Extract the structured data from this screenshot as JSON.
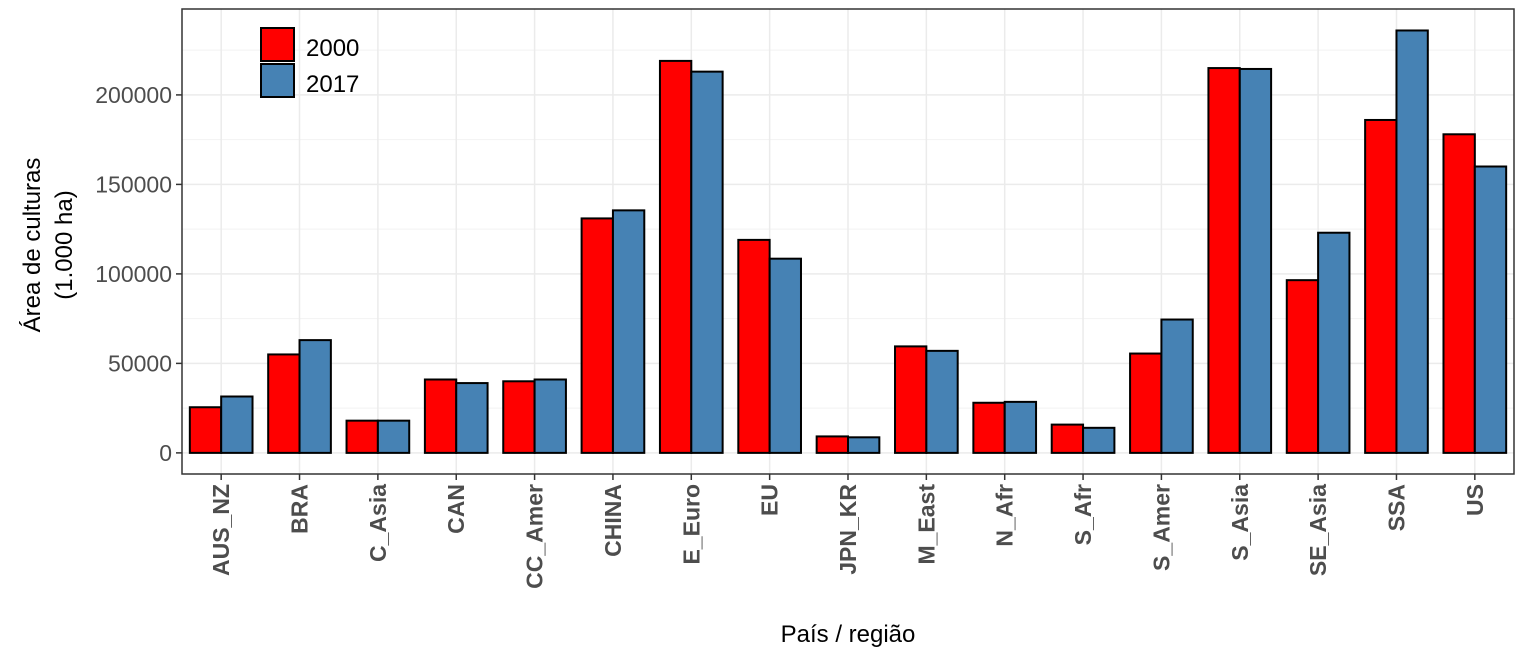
{
  "chart_data": {
    "type": "bar",
    "title": "",
    "xlabel": "País / região",
    "ylabel_lines": [
      "Área de culturas",
      "(1.000 ha)"
    ],
    "categories": [
      "AUS_NZ",
      "BRA",
      "C_Asia",
      "CAN",
      "CC_Amer",
      "CHINA",
      "E_Euro",
      "EU",
      "JPN_KR",
      "M_East",
      "N_Afr",
      "S_Afr",
      "S_Amer",
      "S_Asia",
      "SE_Asia",
      "SSA",
      "US"
    ],
    "series": [
      {
        "name": "2000",
        "color": "#ff0000",
        "values": [
          25500,
          55000,
          18000,
          41000,
          40000,
          131000,
          219000,
          119000,
          9200,
          59500,
          28000,
          15800,
          55500,
          215000,
          96500,
          186000,
          178000
        ]
      },
      {
        "name": "2017",
        "color": "#4682b4",
        "values": [
          31500,
          63000,
          18000,
          39000,
          41000,
          135500,
          213000,
          108500,
          8700,
          57000,
          28500,
          14000,
          74500,
          214500,
          123000,
          236000,
          160000
        ]
      }
    ],
    "ylim": [
      -11800,
      248000
    ],
    "yticks": [
      0,
      50000,
      100000,
      150000,
      200000
    ],
    "ytick_labels": [
      "0",
      "50000",
      "100000",
      "150000",
      "200000"
    ],
    "grid": true,
    "legend_position": "top-left"
  }
}
